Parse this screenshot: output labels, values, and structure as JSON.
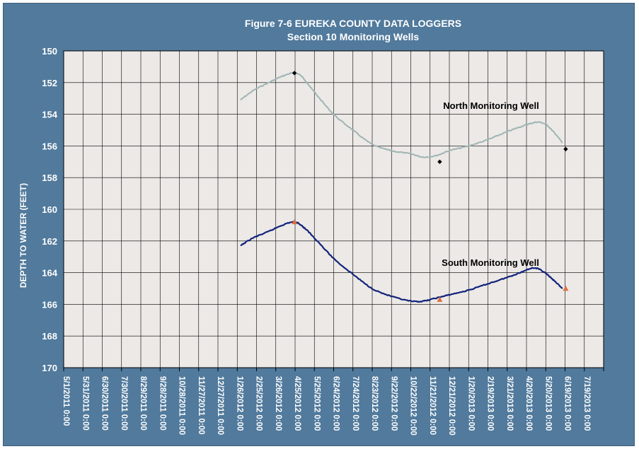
{
  "chart_data": {
    "type": "line",
    "title": "Figure 7-6 EUREKA COUNTY DATA LOGGERS",
    "subtitle": "Section 10 Monitoring Wells",
    "ylabel": "DEPTH TO WATER (FEET)",
    "xlabel": "",
    "y_inverted": true,
    "ylim": [
      150,
      170
    ],
    "y_ticks": [
      "150",
      "152",
      "154",
      "156",
      "158",
      "160",
      "162",
      "164",
      "166",
      "168",
      "170"
    ],
    "x_ticks": [
      "5/1/2011 0:00",
      "5/31/2011 0:00",
      "6/30/2011 0:00",
      "7/30/2011 0:00",
      "8/29/2011 0:00",
      "9/28/2011 0:00",
      "10/28/2011 0:00",
      "11/27/2011 0:00",
      "12/27/2011 0:00",
      "1/26/2012 0:00",
      "2/25/2012 0:00",
      "3/26/2012 0:00",
      "4/25/2012 0:00",
      "5/25/2012 0:00",
      "6/24/2012 0:00",
      "7/24/2012 0:00",
      "8/23/2012 0:00",
      "9/22/2012 0:00",
      "10/22/2012 0:00",
      "11/21/2012 0:00",
      "12/21/2012 0:00",
      "1/20/2013 0:00",
      "2/19/2013 0:00",
      "3/21/2013 0:00",
      "4/20/2013 0:00",
      "5/20/2013 0:00",
      "6/19/2013 0:00",
      "7/19/2013 0:00"
    ],
    "grid": true,
    "series": [
      {
        "name": "North Monitoring Well",
        "color": "#9fb5b4",
        "x": [
          "1/31/2012",
          "2/20/2012",
          "3/15/2012",
          "4/5/2012",
          "4/22/2012",
          "5/5/2012",
          "5/25/2012",
          "6/24/2012",
          "7/24/2012",
          "8/23/2012",
          "9/22/2012",
          "10/22/2012",
          "11/10/2012",
          "12/1/2012",
          "12/21/2012",
          "1/20/2013",
          "2/19/2013",
          "3/21/2013",
          "4/10/2013",
          "4/25/2013",
          "5/10/2013",
          "5/25/2013",
          "6/15/2013"
        ],
        "y": [
          153.1,
          152.5,
          152.0,
          151.6,
          151.4,
          151.6,
          152.6,
          154.0,
          155.0,
          155.9,
          156.3,
          156.5,
          156.7,
          156.6,
          156.3,
          156.0,
          155.6,
          155.1,
          154.8,
          154.6,
          154.5,
          154.8,
          155.8
        ]
      },
      {
        "name": "South Monitoring Well",
        "color": "#13237c",
        "x": [
          "1/31/2012",
          "2/20/2012",
          "3/15/2012",
          "4/5/2012",
          "4/25/2012",
          "5/10/2012",
          "5/25/2012",
          "6/24/2012",
          "7/24/2012",
          "8/23/2012",
          "9/22/2012",
          "10/22/2012",
          "11/10/2012",
          "12/1/2012",
          "12/21/2012",
          "1/20/2013",
          "2/19/2013",
          "3/21/2013",
          "4/10/2013",
          "4/30/2013",
          "5/15/2013",
          "5/30/2013",
          "6/15/2013"
        ],
        "y": [
          162.3,
          161.8,
          161.4,
          161.0,
          160.8,
          161.2,
          161.8,
          163.1,
          164.1,
          165.0,
          165.5,
          165.8,
          165.8,
          165.6,
          165.4,
          165.1,
          164.7,
          164.3,
          164.0,
          163.7,
          163.9,
          164.4,
          165.0
        ]
      }
    ],
    "point_markers": [
      {
        "series": "North Monitoring Well",
        "shape": "diamond",
        "color": "#000000",
        "x": [
          "4/24/2012",
          "12/6/2012",
          "6/20/2013"
        ],
        "y": [
          151.4,
          157.0,
          156.2
        ]
      },
      {
        "series": "South Monitoring Well",
        "shape": "triangle",
        "color": "#e07040",
        "x": [
          "4/24/2012",
          "12/6/2012",
          "6/20/2013"
        ],
        "y": [
          160.8,
          165.7,
          165.0
        ]
      }
    ],
    "annotations": [
      "North Monitoring Well",
      "South Monitoring Well"
    ],
    "colors": {
      "frame": "#517a9c",
      "plot": "#ece9e6",
      "grid": "#000000"
    }
  }
}
